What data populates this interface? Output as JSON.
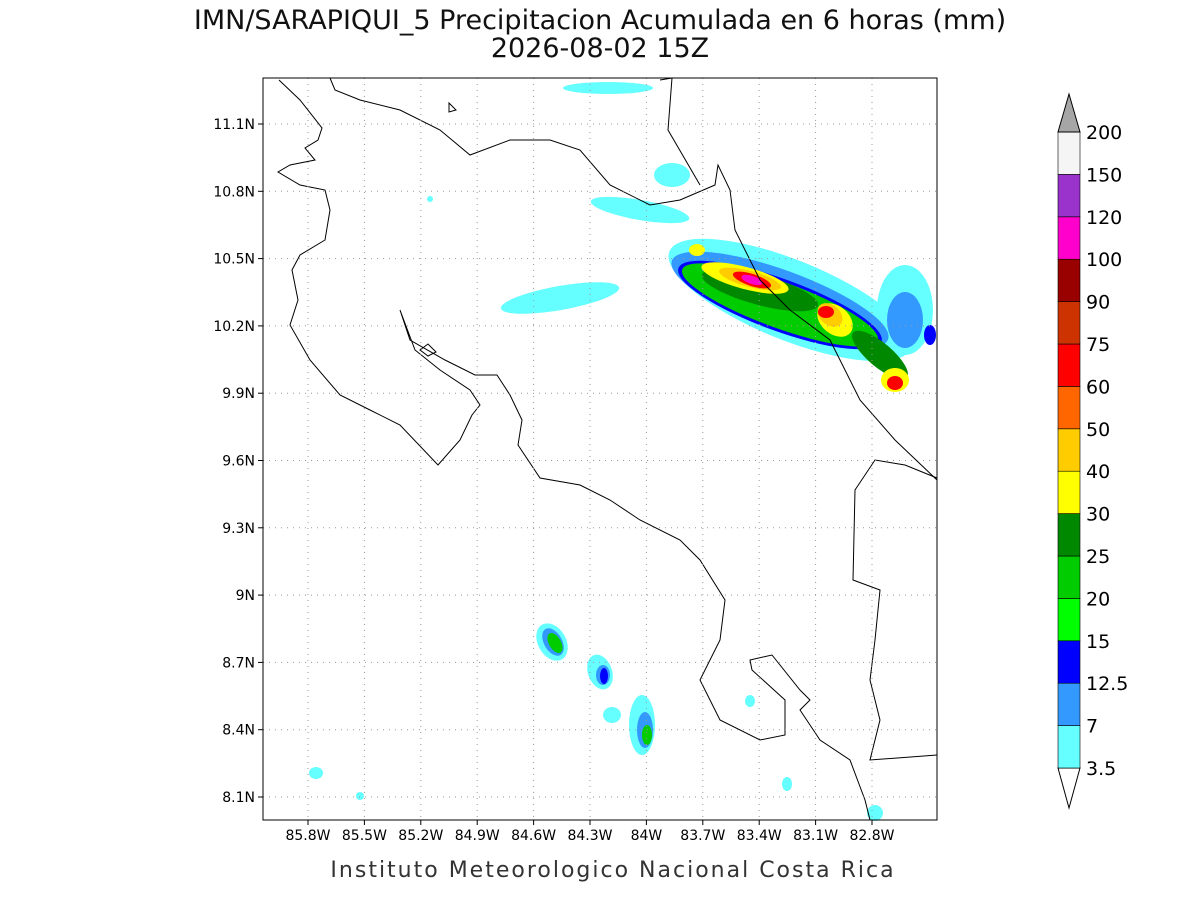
{
  "title": "IMN/SARAPIQUI_5 Precipitacion Acumulada en 6 horas (mm)",
  "subtitle": "2026-08-02 15Z",
  "lon_labels": [
    "85.8W",
    "85.5W",
    "85.2W",
    "84.9W",
    "84.6W",
    "84.3W",
    "84W",
    "83.7W",
    "83.4W",
    "83.1W",
    "82.8W"
  ],
  "lat_labels": [
    "11.1N",
    "10.8N",
    "10.5N",
    "10.2N",
    "9.9N",
    "9.6N",
    "9.3N",
    "9N",
    "8.7N",
    "8.4N",
    "8.1N"
  ],
  "colorbar": {
    "labels": [
      "3.5",
      "7",
      "12.5",
      "15",
      "20",
      "25",
      "30",
      "40",
      "50",
      "60",
      "75",
      "90",
      "100",
      "120",
      "150",
      "200"
    ],
    "colors": [
      "#66ffff",
      "#3399ff",
      "#0000ff",
      "#00ff00",
      "#00cc00",
      "#008800",
      "#ffff00",
      "#ffcc00",
      "#ff6600",
      "#ff0000",
      "#cc3300",
      "#990000",
      "#ff00cc",
      "#9933cc",
      "#f5f5f5"
    ],
    "under_color": "#ffffff",
    "over_color": "#a6a6a6"
  },
  "footer": "Instituto Meteorologico Nacional Costa Rica"
}
